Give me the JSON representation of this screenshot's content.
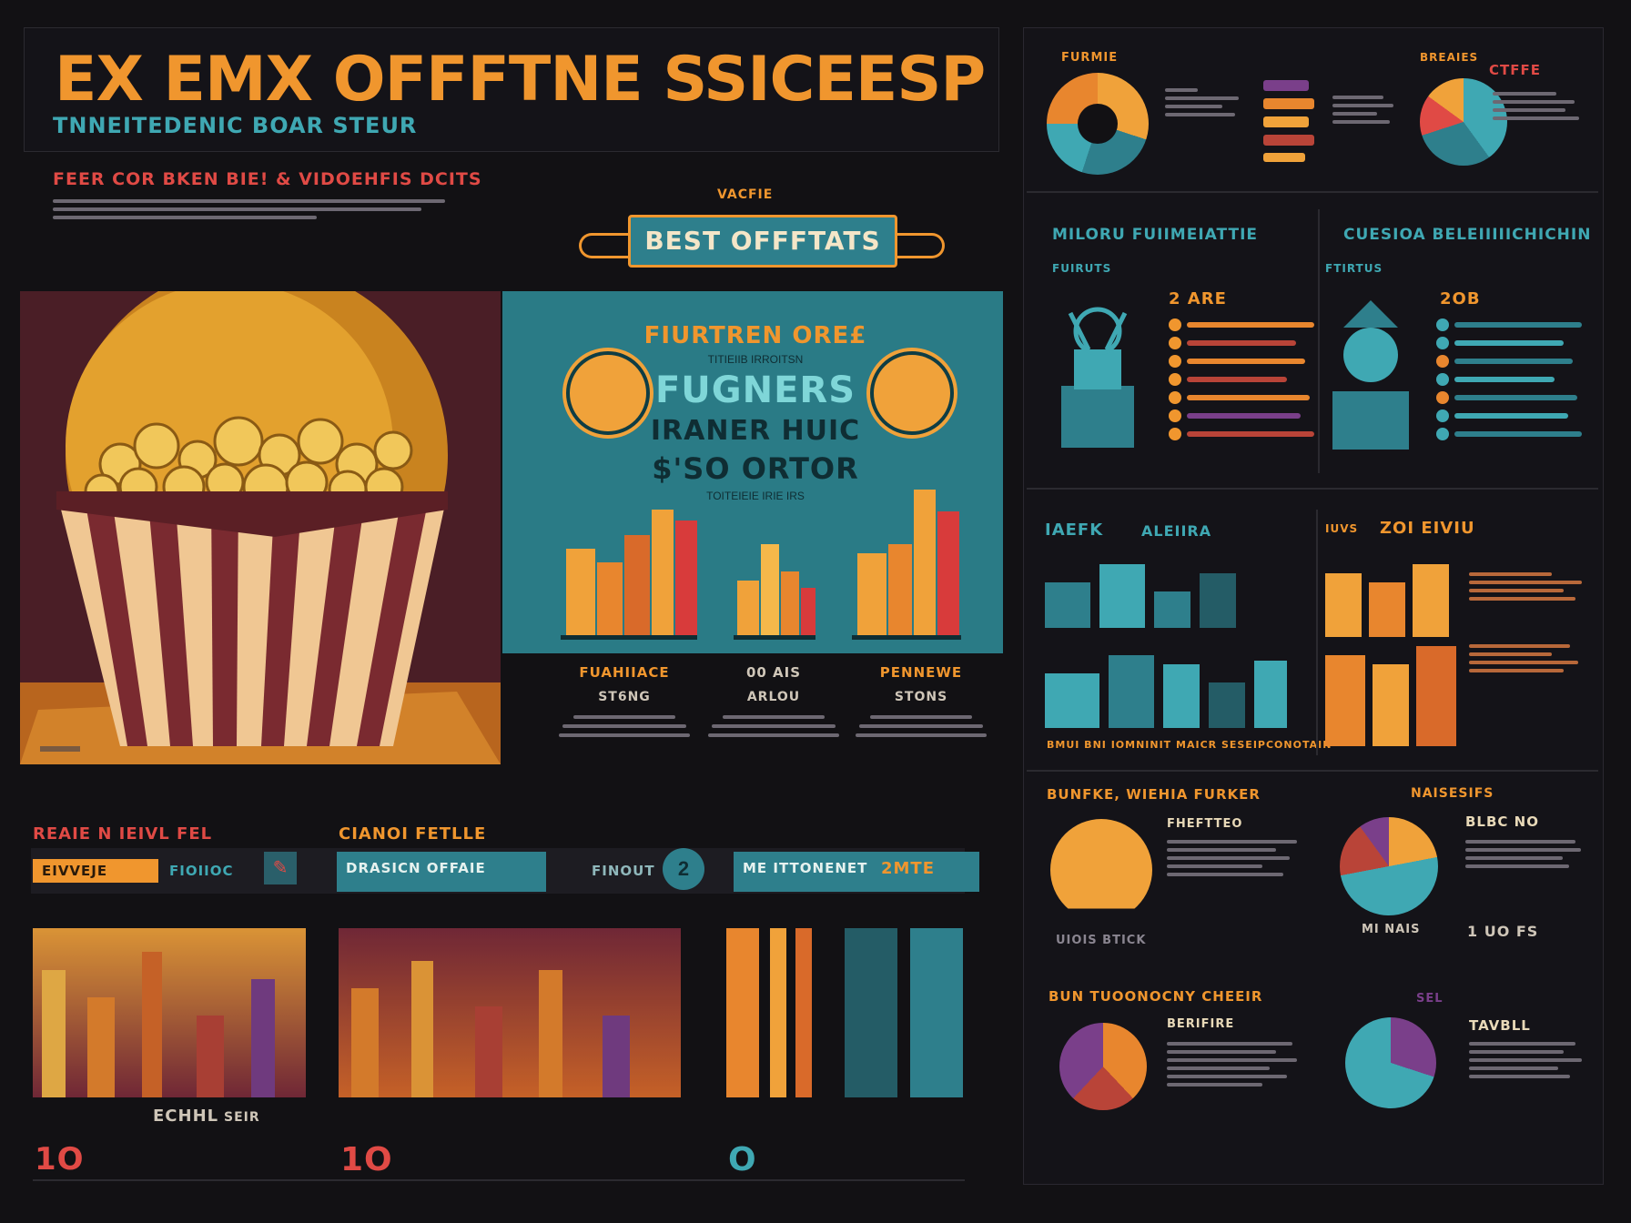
{
  "header": {
    "title": "EX EMX OFFFTNE SSICEESP",
    "subtitle": "TNNEITEDENIC BOAR STEUR",
    "section_heading": "FEER COR BKEN BIE! & VIDOEHFIS DCITS"
  },
  "banner": {
    "kicker": "VACFIE",
    "label": "BEST OFFFTATS"
  },
  "promo": {
    "line1": "FIURTREN ORE£",
    "line2": "TITIEIIB IRROITSN",
    "line3": "FUGNERS",
    "line4": "IRANER HUIC",
    "line5": "$'SO ORTOR",
    "line6": "TOITEIEIE IRIE IRS"
  },
  "stats": [
    {
      "label": "FUAHIIACE",
      "value": "ST6NG"
    },
    {
      "label": "00 AIS",
      "value": "ARLOU"
    },
    {
      "label": "PENNEWE",
      "value": "STONS"
    }
  ],
  "top_right": {
    "label_a": "FURMIE",
    "label_b": "BREAIES",
    "label_c": "CTFFE"
  },
  "mid_right": {
    "left_title": "MILORU FUIIMEIATTIE",
    "left_sub": "FUIRUTS",
    "left_value": "2 ARE",
    "right_title": "CUESIOA BELEIIIIICHICHIN",
    "right_sub": "FTIRTUS",
    "right_value": "2OB"
  },
  "bar_section": {
    "left_title": "IAEFK",
    "left_sub": "ALEIIRA",
    "right_title": "ZOI EIVIU",
    "right_sub": "IUVS",
    "legend": "BMUI BNI IOMNINIT MAICR SESEIPCONOTAIN"
  },
  "pies": {
    "p1_title": "BUNFKE, WIEHIA FURKER",
    "p1_label": "FHEFTTEO",
    "p1_caption": "UIOIS BTICK",
    "p2_title": "NAISESIFS",
    "p2_label": "BLBC NO",
    "p2_value": "MI NAIS",
    "p2_caption": "1 UO FS",
    "p3_title": "BUN TUOONOCNY CHEEIR",
    "p3_label": "BERIFIRE",
    "p4_title": "SEL",
    "p4_label": "TAVBLL"
  },
  "bottom_bar": {
    "title_left": "REAIE N IEIVL FEL",
    "title_mid": "CIANOI FETLLE",
    "pill1": "EIVVEJE",
    "pill1b": "FIOIIOC",
    "field1": "DRASICN OFFAIE",
    "field1b": "FINOUT",
    "field2": "ME ITTONENET",
    "field2b": "2MTE"
  },
  "bottom_labels": {
    "a": "ECHHL",
    "b": "1O",
    "c": "SEIR",
    "d": "1O",
    "e": "O"
  },
  "colors": {
    "orange": "#f0962e",
    "teal": "#3fa8b3",
    "red": "#e04a45",
    "maroon": "#6b2a3a",
    "purple": "#7a3f8a",
    "background": "#121114"
  }
}
